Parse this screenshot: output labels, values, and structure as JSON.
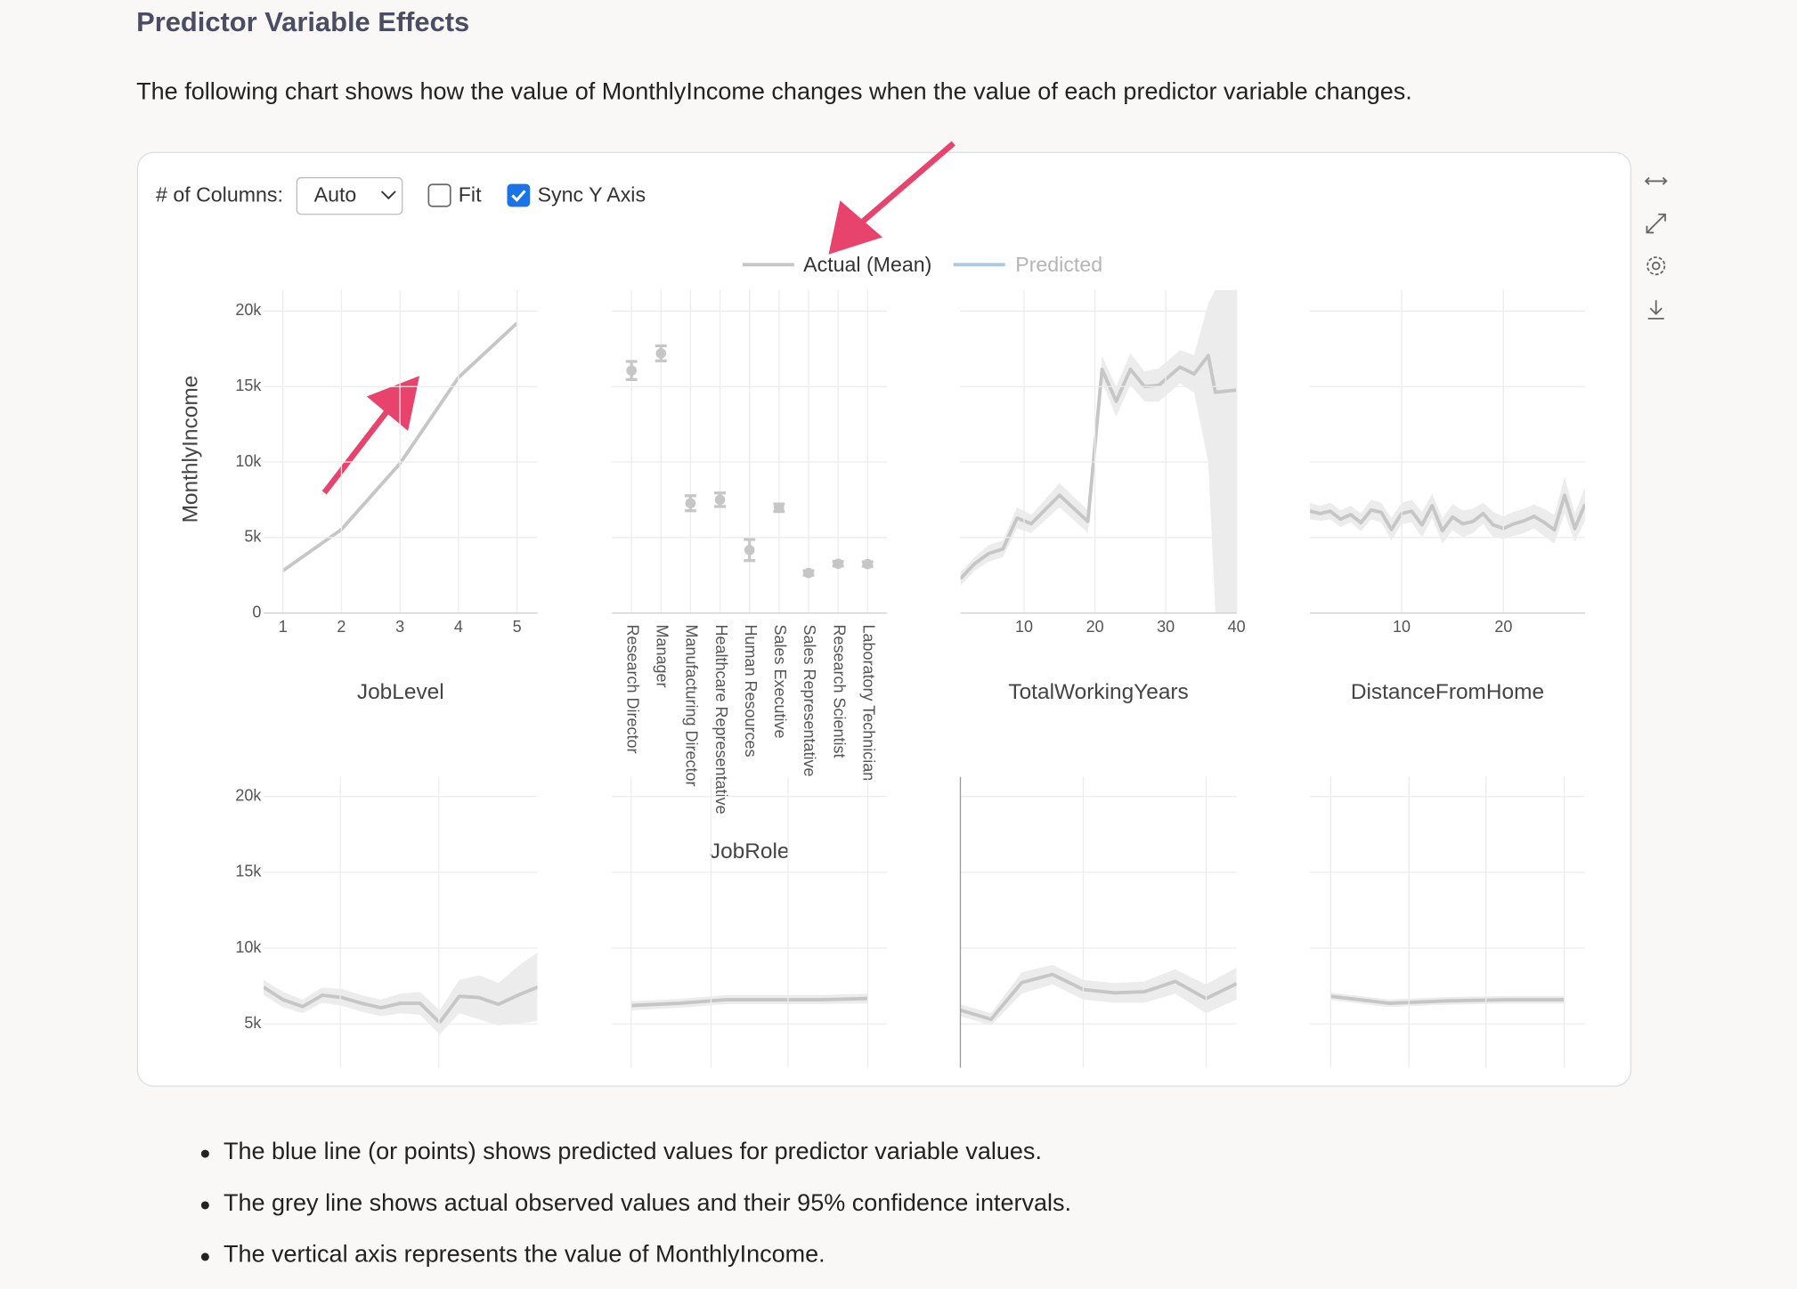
{
  "header": {
    "title": "Predictor Variable Effects",
    "description": "The following chart shows how the value of MonthlyIncome changes when the value of each predictor variable changes."
  },
  "controls": {
    "columns_label": "# of Columns:",
    "columns_value": "Auto",
    "fit_label": "Fit",
    "fit_checked": false,
    "sync_label": "Sync Y Axis",
    "sync_checked": true
  },
  "legend": [
    {
      "name": "Actual (Mean)",
      "color": "#c6c6c6",
      "hidden": false
    },
    {
      "name": "Predicted",
      "color": "#a9c9e0",
      "hidden": true
    }
  ],
  "chart_data": [
    {
      "type": "line",
      "x_label": "JobLevel",
      "y_label": "MonthlyIncome",
      "x": [
        1,
        2,
        3,
        4,
        5
      ],
      "values": [
        2800,
        5530,
        9900,
        15600,
        19200
      ],
      "xlim": [
        0.67,
        5.35
      ],
      "xticks": [
        1,
        2,
        3,
        4,
        5
      ],
      "ylim": [
        0,
        21400
      ],
      "yticks": [
        0,
        {
          "value": 5000,
          "label": "5k"
        },
        {
          "value": 10000,
          "label": "10k"
        },
        {
          "value": 15000,
          "label": "15k"
        },
        {
          "value": 20000,
          "label": "20k"
        }
      ],
      "ytick_labels": true,
      "color": "#c6c6c6",
      "grid": true
    },
    {
      "type": "errorbar",
      "x_label": "JobRole",
      "categories": [
        "Research Director",
        "Manager",
        "Manufacturing Director",
        "Healthcare Representative",
        "Human Resources",
        "Sales Executive",
        "Sales Representative",
        "Research Scientist",
        "Laboratory Technician"
      ],
      "values": [
        16060,
        17200,
        7270,
        7500,
        4170,
        6970,
        2650,
        3260,
        3240
      ],
      "errors": [
        600,
        500,
        500,
        450,
        700,
        250,
        150,
        150,
        150
      ],
      "ylim": [
        0,
        21400
      ],
      "yticks": [
        0,
        5000,
        10000,
        15000,
        20000
      ],
      "ytick_labels": false,
      "color": "#c6c6c6",
      "grid": true
    },
    {
      "type": "line",
      "x_label": "TotalWorkingYears",
      "x": [
        1,
        3,
        5,
        7,
        9,
        11,
        15,
        19,
        21,
        23,
        25,
        27,
        29,
        32,
        34,
        36,
        37,
        40
      ],
      "values": [
        2270,
        3260,
        3940,
        4240,
        6290,
        5910,
        7800,
        6060,
        16140,
        14020,
        16140,
        15000,
        15080,
        16290,
        15830,
        17050,
        14620,
        14770
      ],
      "lower": [
        1800,
        2800,
        3400,
        3700,
        5600,
        5300,
        7000,
        5300,
        15300,
        13000,
        15100,
        14000,
        14000,
        15200,
        14600,
        10000,
        0,
        0
      ],
      "upper": [
        2700,
        3700,
        4500,
        4800,
        7000,
        6500,
        8600,
        6800,
        17000,
        15000,
        17200,
        16000,
        16200,
        17400,
        17100,
        20500,
        21400,
        21400
      ],
      "xlim": [
        1,
        40
      ],
      "xticks": [
        10,
        20,
        30,
        40
      ],
      "ylim": [
        0,
        21400
      ],
      "yticks": [
        0,
        5000,
        10000,
        15000,
        20000
      ],
      "ytick_labels": false,
      "color": "#c6c6c6",
      "band_color": "#ececec",
      "grid": true
    },
    {
      "type": "line",
      "x_label": "DistanceFromHome",
      "x": [
        1,
        2,
        3,
        4,
        5,
        6,
        7,
        8,
        9,
        10,
        11,
        12,
        13,
        14,
        15,
        16,
        17,
        18,
        19,
        20,
        21,
        22,
        23,
        24,
        25,
        26,
        27,
        28
      ],
      "values": [
        6740,
        6590,
        6740,
        6210,
        6520,
        5980,
        6820,
        6670,
        5530,
        6590,
        6740,
        5830,
        7120,
        5450,
        6360,
        5910,
        6060,
        6590,
        5830,
        5600,
        5900,
        6100,
        6400,
        6000,
        5500,
        7800,
        5600,
        7200
      ],
      "lower": [
        6200,
        6100,
        6200,
        5700,
        6000,
        5400,
        6200,
        6000,
        4800,
        5900,
        6000,
        5000,
        6300,
        4600,
        5500,
        5000,
        5300,
        5900,
        5000,
        4900,
        5100,
        5300,
        5600,
        5100,
        4600,
        6600,
        4700,
        6100
      ],
      "upper": [
        7300,
        7100,
        7300,
        6800,
        7100,
        6600,
        7500,
        7300,
        6300,
        7300,
        7500,
        6700,
        7900,
        6300,
        7200,
        6800,
        6900,
        7300,
        6700,
        6400,
        6700,
        6900,
        7200,
        6900,
        6500,
        9000,
        6600,
        8300
      ],
      "xlim": [
        1,
        28
      ],
      "xticks": [
        10,
        20
      ],
      "ylim": [
        0,
        21400
      ],
      "yticks": [
        0,
        5000,
        10000,
        15000,
        20000
      ],
      "ytick_labels": false,
      "color": "#c6c6c6",
      "band_color": "#ececec",
      "grid": true
    },
    {
      "type": "line",
      "categories": [
        null,
        null,
        null,
        null,
        null,
        null,
        null,
        null,
        null,
        null,
        null,
        null,
        null,
        null,
        null
      ],
      "values": [
        7420,
        6590,
        6140,
        6890,
        6740,
        6360,
        6060,
        6360,
        6360,
        5080,
        6820,
        6740,
        6290,
        6890,
        7420
      ],
      "lower": [
        6900,
        6100,
        5700,
        6400,
        6200,
        5800,
        5500,
        5700,
        5600,
        4300,
        5700,
        5300,
        4900,
        5000,
        5200
      ],
      "upper": [
        7900,
        7100,
        6600,
        7400,
        7300,
        6900,
        6600,
        7000,
        7100,
        5900,
        7900,
        8200,
        7700,
        8800,
        9700
      ],
      "ylim": [
        2100,
        21300
      ],
      "yticks": [
        {
          "value": 5000,
          "label": "5k"
        },
        {
          "value": 10000,
          "label": "10k"
        },
        {
          "value": 15000,
          "label": "15k"
        },
        {
          "value": 20000,
          "label": "20k"
        }
      ],
      "ytick_labels": true,
      "color": "#c6c6c6",
      "band_color": "#ececec",
      "grid": true
    },
    {
      "type": "line",
      "categories": [
        null,
        null,
        null,
        null,
        null,
        null
      ],
      "values": [
        6210,
        6360,
        6590,
        6590,
        6590,
        6670
      ],
      "lower": [
        5900,
        6050,
        6300,
        6300,
        6300,
        6350
      ],
      "upper": [
        6500,
        6650,
        6900,
        6900,
        6900,
        7000
      ],
      "ylim": [
        2100,
        21300
      ],
      "yticks": [
        5000,
        10000,
        15000,
        20000
      ],
      "ytick_labels": false,
      "color": "#c6c6c6",
      "band_color": "#ececec",
      "grid": true
    },
    {
      "type": "line",
      "categories": [
        null,
        null,
        null,
        null,
        null,
        null,
        null,
        null,
        null,
        null
      ],
      "values": [
        5910,
        5300,
        7730,
        8260,
        7270,
        7050,
        7120,
        7800,
        6670,
        7650
      ],
      "lower": [
        5500,
        4900,
        7000,
        7600,
        6600,
        6400,
        6400,
        7000,
        5700,
        6600
      ],
      "upper": [
        6300,
        5700,
        8400,
        8900,
        7900,
        7700,
        7800,
        8600,
        7600,
        8700
      ],
      "ylim": [
        2100,
        21300
      ],
      "yticks": [
        5000,
        10000,
        15000,
        20000
      ],
      "ytick_labels": false,
      "color": "#c6c6c6",
      "band_color": "#ececec",
      "grid": true
    },
    {
      "type": "line",
      "categories": [
        null,
        null,
        null,
        null,
        null
      ],
      "values": [
        6820,
        6360,
        6520,
        6590,
        6590
      ],
      "lower": [
        6570,
        6110,
        6270,
        6340,
        6340
      ],
      "upper": [
        7070,
        6610,
        6770,
        6840,
        6840
      ],
      "ylim": [
        2100,
        21300
      ],
      "yticks": [
        5000,
        10000,
        15000,
        20000
      ],
      "ytick_labels": false,
      "color": "#c6c6c6",
      "band_color": "#ececec",
      "grid": true
    }
  ],
  "notes": [
    "The blue line (or points) shows predicted values for predictor variable values.",
    "The grey line shows actual observed values and their 95% confidence intervals.",
    "The vertical axis represents the value of MonthlyIncome."
  ]
}
